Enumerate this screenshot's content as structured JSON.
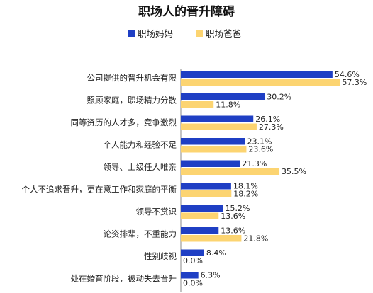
{
  "chart_data": {
    "type": "bar",
    "orientation": "horizontal",
    "title": "职场人的晋升障碍",
    "categories": [
      "公司提供的晋升机会有限",
      "照顾家庭，职场精力分散",
      "同等资历的人才多，竞争激烈",
      "个人能力和经验不足",
      "领导、上级任人唯亲",
      "个人不追求晋升，更在意工作和家庭的平衡",
      "领导不赏识",
      "论资排辈，不重能力",
      "性别歧视",
      "处在婚育阶段，被动失去晋升"
    ],
    "series": [
      {
        "name": "职场妈妈",
        "color": "#1f3fc4",
        "values": [
          54.6,
          30.2,
          26.1,
          23.1,
          21.3,
          18.1,
          15.2,
          13.6,
          8.4,
          6.3
        ],
        "labels": [
          "54.6%",
          "30.2%",
          "26.1%",
          "23.1%",
          "21.3%",
          "18.1%",
          "15.2%",
          "13.6%",
          "8.4%",
          "6.3%"
        ]
      },
      {
        "name": "职场爸爸",
        "color": "#fcd471",
        "values": [
          57.3,
          11.8,
          27.3,
          23.6,
          35.5,
          18.2,
          13.6,
          21.8,
          0.0,
          0.0
        ],
        "labels": [
          "57.3%",
          "11.8%",
          "27.3%",
          "23.6%",
          "35.5%",
          "18.2%",
          "13.6%",
          "21.8%",
          "0.0%",
          "0.0%"
        ]
      }
    ],
    "xlim": [
      0,
      60
    ],
    "legend_position": "top",
    "grid": false
  }
}
